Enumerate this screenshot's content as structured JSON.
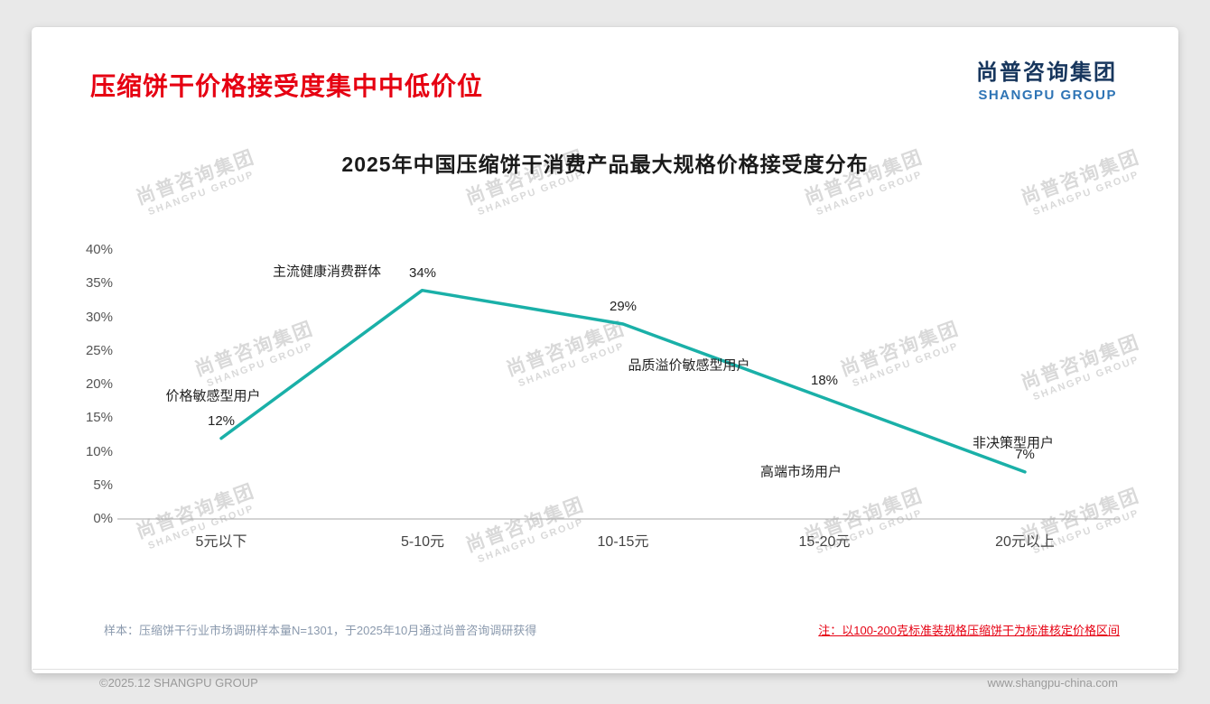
{
  "page": {
    "title": "压缩饼干价格接受度集中中低价位",
    "logo": {
      "cn": "尚普咨询集团",
      "en": "SHANGPU GROUP"
    },
    "watermark": {
      "cn": "尚普咨询集团",
      "en": "SHANGPU GROUP"
    },
    "footer": {
      "sample_note": "样本：压缩饼干行业市场调研样本量N=1301，于2025年10月通过尚普咨询调研获得",
      "price_note": "注：以100-200克标准装规格压缩饼干为标准核定价格区间",
      "copyright": "©2025.12 SHANGPU GROUP",
      "website": "www.shangpu-china.com"
    }
  },
  "chart_data": {
    "type": "line",
    "title": "2025年中国压缩饼干消费产品最大规格价格接受度分布",
    "categories": [
      "5元以下",
      "5-10元",
      "10-15元",
      "15-20元",
      "20元以上"
    ],
    "values": [
      12,
      34,
      29,
      18,
      7
    ],
    "value_labels": [
      "12%",
      "34%",
      "29%",
      "18%",
      "7%"
    ],
    "annotations": [
      "价格敏感型用户",
      "主流健康消费群体",
      "品质溢价敏感型用户",
      "高端市场用户",
      "非决策型用户"
    ],
    "ylim": [
      0,
      40
    ],
    "ytick_step": 5,
    "yticks": [
      "0%",
      "5%",
      "10%",
      "15%",
      "20%",
      "25%",
      "30%",
      "35%",
      "40%"
    ],
    "line_color": "#1ab0a8",
    "axis_color": "#a8a8a8",
    "grid": false,
    "legend": false
  }
}
